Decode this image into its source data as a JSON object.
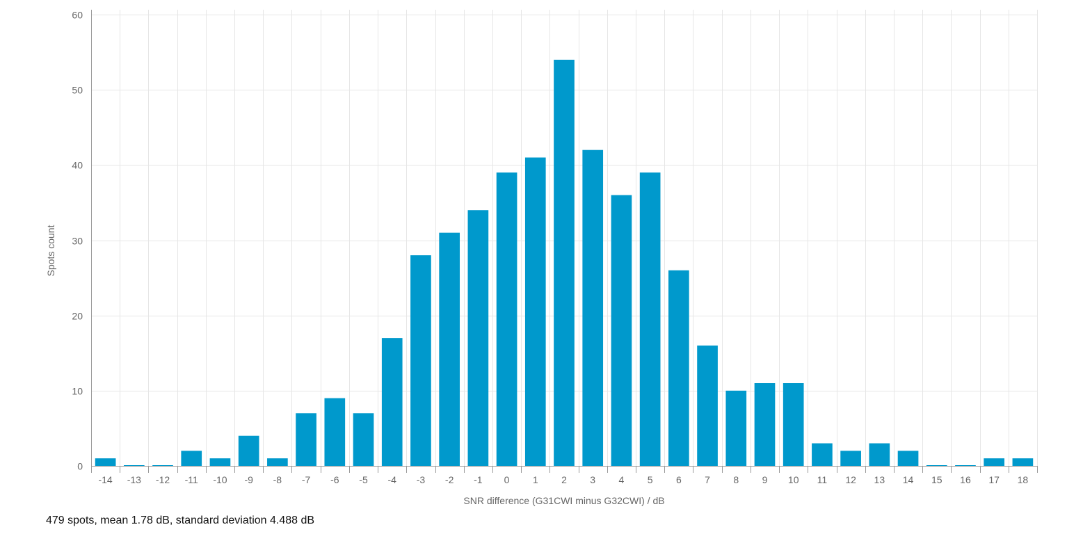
{
  "chart_data": {
    "type": "bar",
    "categories": [
      "-14",
      "-13",
      "-12",
      "-11",
      "-10",
      "-9",
      "-8",
      "-7",
      "-6",
      "-5",
      "-4",
      "-3",
      "-2",
      "-1",
      "0",
      "1",
      "2",
      "3",
      "4",
      "5",
      "6",
      "7",
      "8",
      "9",
      "10",
      "11",
      "12",
      "13",
      "14",
      "15",
      "16",
      "17",
      "18"
    ],
    "series": [
      {
        "values": [
          1,
          0,
          0,
          2,
          1,
          4,
          1,
          7,
          9,
          7,
          17,
          28,
          31,
          34,
          39,
          41,
          54,
          42,
          36,
          39,
          26,
          16,
          10,
          11,
          11,
          3,
          2,
          3,
          2,
          0,
          0,
          1,
          1
        ]
      }
    ],
    "xlabel": "SNR difference (G31CWI minus G32CWI) / dB",
    "ylabel": "Spots count",
    "ylim": [
      0,
      60
    ],
    "yticks": [
      0,
      10,
      20,
      30,
      40,
      50,
      60
    ],
    "grid": true,
    "legend": "none",
    "colors": {
      "bar": "#0099cc",
      "grid": "#e6e6e6",
      "axis": "#999999",
      "text": "#666666"
    }
  },
  "summary": "479 spots, mean 1.78 dB, standard deviation 4.488 dB"
}
